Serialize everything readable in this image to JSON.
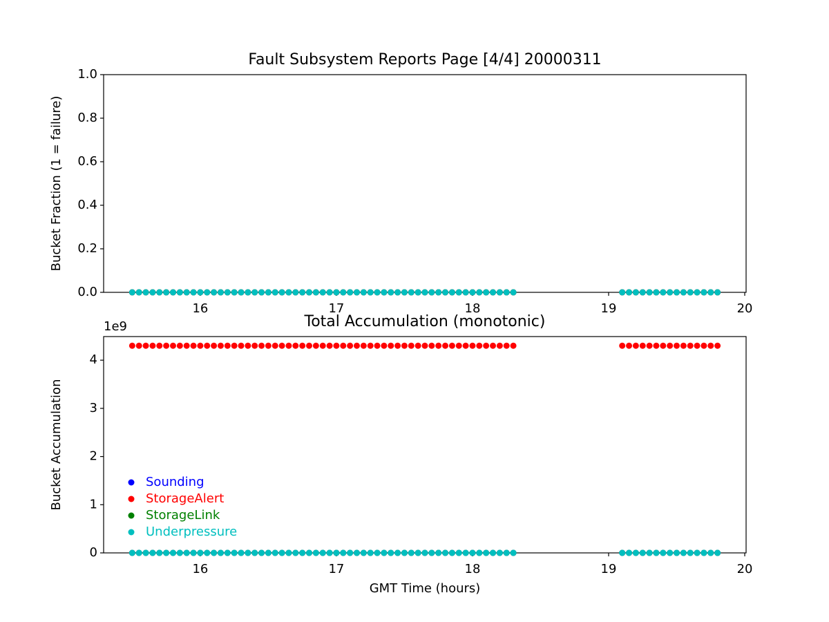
{
  "chart_data": [
    {
      "type": "scatter",
      "title": "Fault Subsystem Reports Page [4/4] 20000311",
      "y_label": "Bucket Fraction (1 = failure)",
      "x": [
        15.5,
        15.55,
        15.6,
        15.65,
        15.7,
        15.75,
        15.8,
        15.85,
        15.9,
        15.95,
        16,
        16.05,
        16.1,
        16.15,
        16.2,
        16.25,
        16.3,
        16.35,
        16.4,
        16.45,
        16.5,
        16.55,
        16.6,
        16.65,
        16.7,
        16.75,
        16.8,
        16.85,
        16.9,
        16.95,
        17,
        17.05,
        17.1,
        17.15,
        17.2,
        17.25,
        17.3,
        17.35,
        17.4,
        17.45,
        17.5,
        17.55,
        17.6,
        17.65,
        17.7,
        17.75,
        17.8,
        17.85,
        17.9,
        17.95,
        18,
        18.05,
        18.1,
        18.15,
        18.2,
        18.25,
        18.3,
        19.1,
        19.15,
        19.2,
        19.25,
        19.3,
        19.35,
        19.4,
        19.45,
        19.5,
        19.55,
        19.6,
        19.65,
        19.7,
        19.75,
        19.8
      ],
      "series": [
        {
          "color": "#0000ff",
          "values": [
            0,
            0,
            0,
            0,
            0,
            0,
            0,
            0,
            0,
            0,
            0,
            0,
            0,
            0,
            0,
            0,
            0,
            0,
            0,
            0,
            0,
            0,
            0,
            0,
            0,
            0,
            0,
            0,
            0,
            0,
            0,
            0,
            0,
            0,
            0,
            0,
            0,
            0,
            0,
            0,
            0,
            0,
            0,
            0,
            0,
            0,
            0,
            0,
            0,
            0,
            0,
            0,
            0,
            0,
            0,
            0,
            0,
            0,
            0,
            0,
            0,
            0,
            0,
            0,
            0,
            0,
            0,
            0,
            0,
            0,
            0,
            0
          ]
        },
        {
          "color": "#ff0000",
          "values": [
            0,
            0,
            0,
            0,
            0,
            0,
            0,
            0,
            0,
            0,
            0,
            0,
            0,
            0,
            0,
            0,
            0,
            0,
            0,
            0,
            0,
            0,
            0,
            0,
            0,
            0,
            0,
            0,
            0,
            0,
            0,
            0,
            0,
            0,
            0,
            0,
            0,
            0,
            0,
            0,
            0,
            0,
            0,
            0,
            0,
            0,
            0,
            0,
            0,
            0,
            0,
            0,
            0,
            0,
            0,
            0,
            0,
            0,
            0,
            0,
            0,
            0,
            0,
            0,
            0,
            0,
            0,
            0,
            0,
            0,
            0,
            0
          ]
        },
        {
          "color": "#008000",
          "values": [
            0,
            0,
            0,
            0,
            0,
            0,
            0,
            0,
            0,
            0,
            0,
            0,
            0,
            0,
            0,
            0,
            0,
            0,
            0,
            0,
            0,
            0,
            0,
            0,
            0,
            0,
            0,
            0,
            0,
            0,
            0,
            0,
            0,
            0,
            0,
            0,
            0,
            0,
            0,
            0,
            0,
            0,
            0,
            0,
            0,
            0,
            0,
            0,
            0,
            0,
            0,
            0,
            0,
            0,
            0,
            0,
            0,
            0,
            0,
            0,
            0,
            0,
            0,
            0,
            0,
            0,
            0,
            0,
            0,
            0,
            0,
            0
          ]
        },
        {
          "color": "#00bfbf",
          "values": [
            0,
            0,
            0,
            0,
            0,
            0,
            0,
            0,
            0,
            0,
            0,
            0,
            0,
            0,
            0,
            0,
            0,
            0,
            0,
            0,
            0,
            0,
            0,
            0,
            0,
            0,
            0,
            0,
            0,
            0,
            0,
            0,
            0,
            0,
            0,
            0,
            0,
            0,
            0,
            0,
            0,
            0,
            0,
            0,
            0,
            0,
            0,
            0,
            0,
            0,
            0,
            0,
            0,
            0,
            0,
            0,
            0,
            0,
            0,
            0,
            0,
            0,
            0,
            0,
            0,
            0,
            0,
            0,
            0,
            0,
            0,
            0
          ]
        }
      ],
      "xlim": [
        15.29,
        20.01
      ],
      "xticks": [
        16,
        17,
        18,
        19,
        20
      ],
      "ylim": [
        0,
        1
      ],
      "yticks": [
        {
          "value": 0,
          "label": "0.0"
        },
        0.2,
        0.4,
        0.6,
        0.8,
        {
          "value": 1,
          "label": "1.0"
        }
      ]
    },
    {
      "type": "scatter",
      "title": "Total Accumulation (monotonic)",
      "x_label": "GMT Time (hours)",
      "y_label": "Bucket Accumulation",
      "offset_text": "1e9",
      "legend": "lower left",
      "x": [
        15.5,
        15.55,
        15.6,
        15.65,
        15.7,
        15.75,
        15.8,
        15.85,
        15.9,
        15.95,
        16,
        16.05,
        16.1,
        16.15,
        16.2,
        16.25,
        16.3,
        16.35,
        16.4,
        16.45,
        16.5,
        16.55,
        16.6,
        16.65,
        16.7,
        16.75,
        16.8,
        16.85,
        16.9,
        16.95,
        17,
        17.05,
        17.1,
        17.15,
        17.2,
        17.25,
        17.3,
        17.35,
        17.4,
        17.45,
        17.5,
        17.55,
        17.6,
        17.65,
        17.7,
        17.75,
        17.8,
        17.85,
        17.9,
        17.95,
        18,
        18.05,
        18.1,
        18.15,
        18.2,
        18.25,
        18.3,
        19.1,
        19.15,
        19.2,
        19.25,
        19.3,
        19.35,
        19.4,
        19.45,
        19.5,
        19.55,
        19.6,
        19.65,
        19.7,
        19.75,
        19.8
      ],
      "series": [
        {
          "name": "Sounding",
          "color": "#0000ff",
          "values": [
            0,
            0,
            0,
            0,
            0,
            0,
            0,
            0,
            0,
            0,
            0,
            0,
            0,
            0,
            0,
            0,
            0,
            0,
            0,
            0,
            0,
            0,
            0,
            0,
            0,
            0,
            0,
            0,
            0,
            0,
            0,
            0,
            0,
            0,
            0,
            0,
            0,
            0,
            0,
            0,
            0,
            0,
            0,
            0,
            0,
            0,
            0,
            0,
            0,
            0,
            0,
            0,
            0,
            0,
            0,
            0,
            0,
            0,
            0,
            0,
            0,
            0,
            0,
            0,
            0,
            0,
            0,
            0,
            0,
            0,
            0,
            0
          ]
        },
        {
          "name": "StorageAlert",
          "color": "#ff0000",
          "values": [
            4300000000,
            4300000000,
            4300000000,
            4300000000,
            4300000000,
            4300000000,
            4300000000,
            4300000000,
            4300000000,
            4300000000,
            4300000000,
            4300000000,
            4300000000,
            4300000000,
            4300000000,
            4300000000,
            4300000000,
            4300000000,
            4300000000,
            4300000000,
            4300000000,
            4300000000,
            4300000000,
            4300000000,
            4300000000,
            4300000000,
            4300000000,
            4300000000,
            4300000000,
            4300000000,
            4300000000,
            4300000000,
            4300000000,
            4300000000,
            4300000000,
            4300000000,
            4300000000,
            4300000000,
            4300000000,
            4300000000,
            4300000000,
            4300000000,
            4300000000,
            4300000000,
            4300000000,
            4300000000,
            4300000000,
            4300000000,
            4300000000,
            4300000000,
            4300000000,
            4300000000,
            4300000000,
            4300000000,
            4300000000,
            4300000000,
            4300000000,
            4300000000,
            4300000000,
            4300000000,
            4300000000,
            4300000000,
            4300000000,
            4300000000,
            4300000000,
            4300000000,
            4300000000,
            4300000000,
            4300000000,
            4300000000,
            4300000000,
            4300000000
          ]
        },
        {
          "name": "StorageLink",
          "color": "#008000",
          "values": [
            0,
            0,
            0,
            0,
            0,
            0,
            0,
            0,
            0,
            0,
            0,
            0,
            0,
            0,
            0,
            0,
            0,
            0,
            0,
            0,
            0,
            0,
            0,
            0,
            0,
            0,
            0,
            0,
            0,
            0,
            0,
            0,
            0,
            0,
            0,
            0,
            0,
            0,
            0,
            0,
            0,
            0,
            0,
            0,
            0,
            0,
            0,
            0,
            0,
            0,
            0,
            0,
            0,
            0,
            0,
            0,
            0,
            0,
            0,
            0,
            0,
            0,
            0,
            0,
            0,
            0,
            0,
            0,
            0,
            0,
            0,
            0
          ]
        },
        {
          "name": "Underpressure",
          "color": "#00bfbf",
          "values": [
            0,
            0,
            0,
            0,
            0,
            0,
            0,
            0,
            0,
            0,
            0,
            0,
            0,
            0,
            0,
            0,
            0,
            0,
            0,
            0,
            0,
            0,
            0,
            0,
            0,
            0,
            0,
            0,
            0,
            0,
            0,
            0,
            0,
            0,
            0,
            0,
            0,
            0,
            0,
            0,
            0,
            0,
            0,
            0,
            0,
            0,
            0,
            0,
            0,
            0,
            0,
            0,
            0,
            0,
            0,
            0,
            0,
            0,
            0,
            0,
            0,
            0,
            0,
            0,
            0,
            0,
            0,
            0,
            0,
            0,
            0,
            0
          ]
        }
      ],
      "xlim": [
        15.29,
        20.01
      ],
      "xticks": [
        16,
        17,
        18,
        19,
        20
      ],
      "ylim": [
        0,
        4490000000
      ],
      "yticks": [
        {
          "value": 0,
          "label": "0"
        },
        {
          "value": 1000000000,
          "label": "1"
        },
        {
          "value": 2000000000,
          "label": "2"
        },
        {
          "value": 3000000000,
          "label": "3"
        },
        {
          "value": 4000000000,
          "label": "4"
        }
      ]
    }
  ]
}
